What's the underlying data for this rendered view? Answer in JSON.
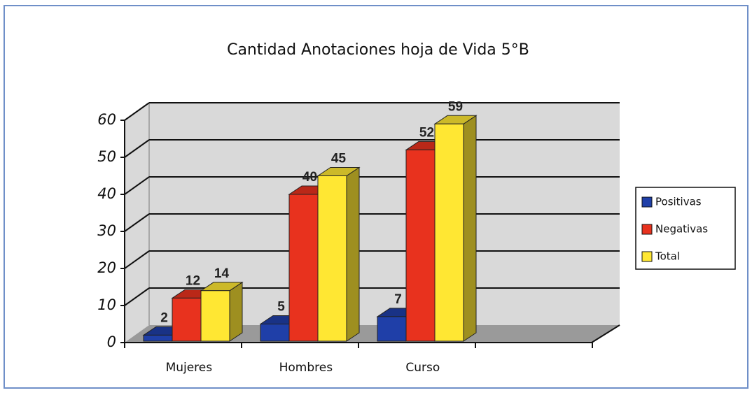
{
  "chart_data": {
    "type": "bar3d",
    "title": "Cantidad Anotaciones hoja de Vida 5°B",
    "categories": [
      "Mujeres",
      "Hombres",
      "Curso"
    ],
    "series": [
      {
        "name": "Positivas",
        "color": "#1f3fa8",
        "values": [
          2,
          5,
          7
        ]
      },
      {
        "name": "Negativas",
        "color": "#e8321e",
        "values": [
          12,
          40,
          52
        ]
      },
      {
        "name": "Total",
        "color": "#ffe733",
        "values": [
          14,
          45,
          59
        ]
      }
    ],
    "ylim": [
      0,
      60
    ],
    "yticks": [
      0,
      10,
      20,
      30,
      40,
      50,
      60
    ],
    "grid": true,
    "legend": "right"
  }
}
